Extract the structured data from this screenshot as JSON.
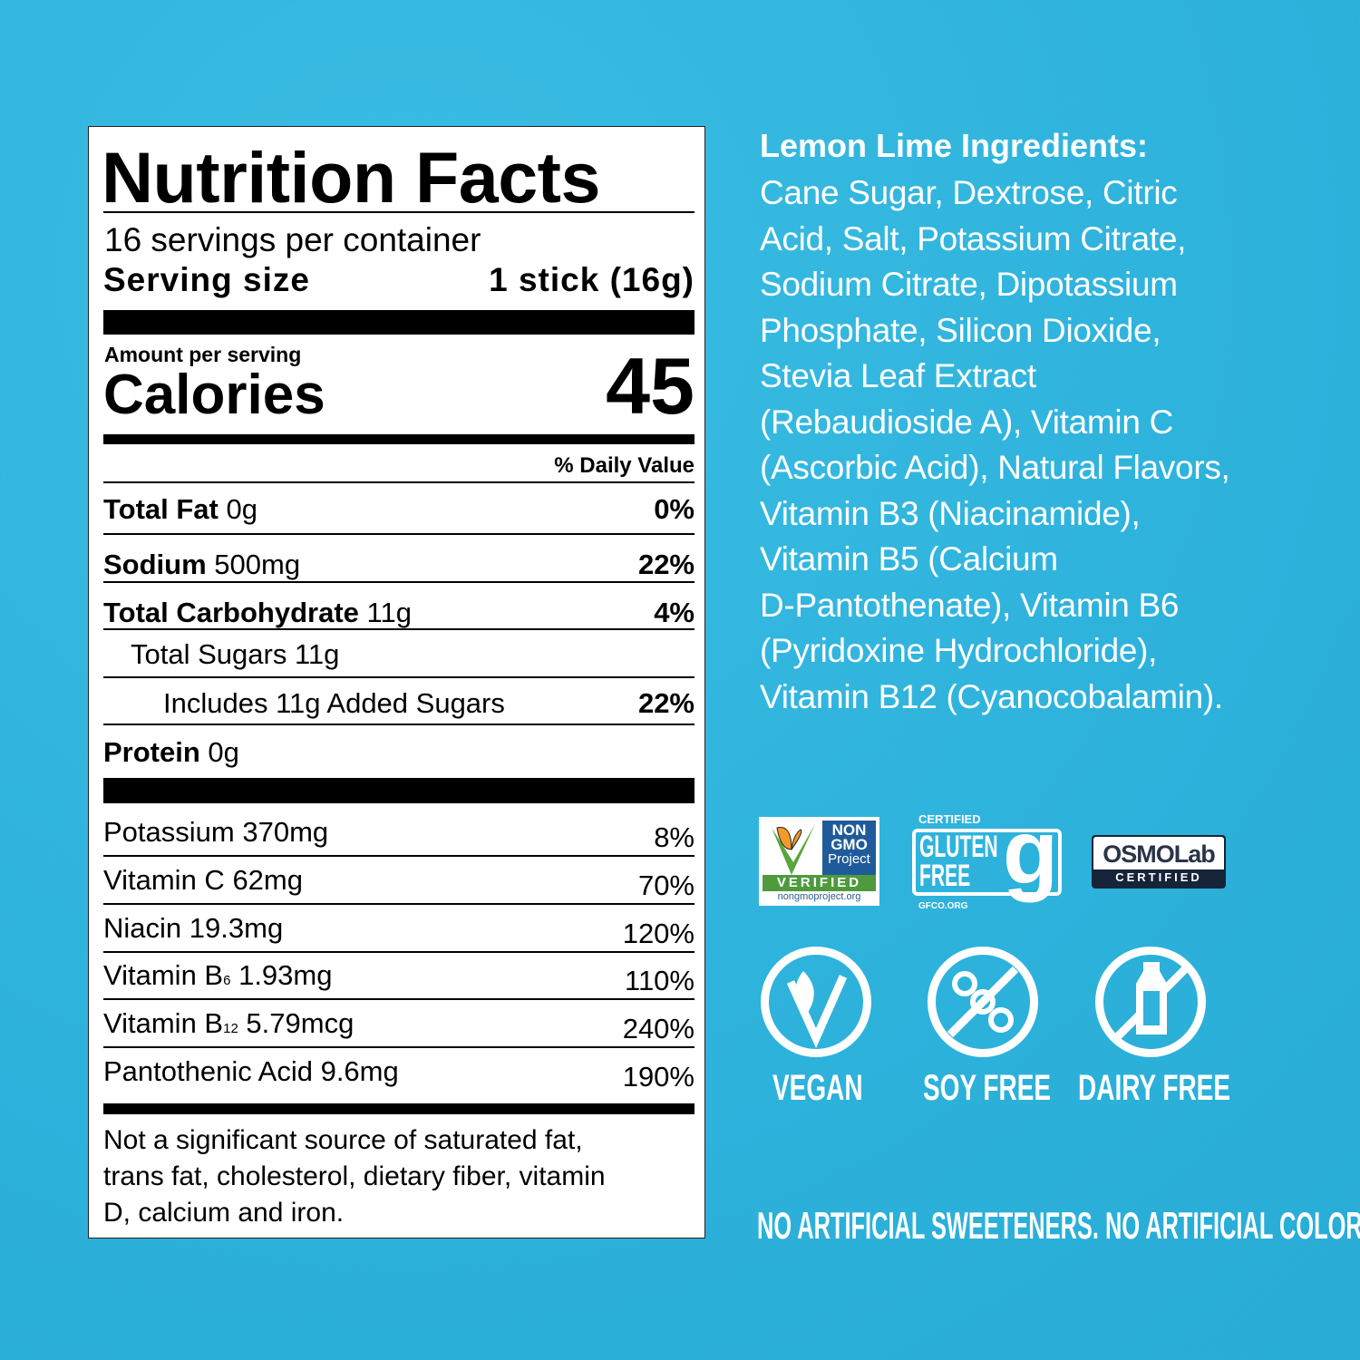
{
  "nutrition": {
    "title": "Nutrition Facts",
    "servings": "16 servings per container",
    "serving_size_label": "Serving size",
    "serving_size_value": "1 stick (16g)",
    "amount_per_serving": "Amount per serving",
    "calories_label": "Calories",
    "calories_value": "45",
    "dv_header": "% Daily Value",
    "nutrients": [
      {
        "name": "Total Fat",
        "amount": "0g",
        "dv": "0%"
      },
      {
        "name": "Sodium",
        "amount": "500mg",
        "dv": "22%"
      },
      {
        "name": "Total Carbohydrate",
        "amount": "11g",
        "dv": "4%"
      },
      {
        "name": "Total Sugars",
        "amount": "11g",
        "dv": ""
      },
      {
        "name": "Includes 11g Added Sugars",
        "amount": "",
        "dv": "22%"
      },
      {
        "name": "Protein",
        "amount": "0g",
        "dv": ""
      }
    ],
    "vitamins": [
      {
        "name": "Potassium",
        "sub": "",
        "amount": "370mg",
        "dv": "8%"
      },
      {
        "name": "Vitamin C",
        "sub": "",
        "amount": "62mg",
        "dv": "70%"
      },
      {
        "name": "Niacin",
        "sub": "",
        "amount": "19.3mg",
        "dv": "120%"
      },
      {
        "name": "Vitamin B",
        "sub": "6",
        "amount": "1.93mg",
        "dv": "110%"
      },
      {
        "name": "Vitamin B",
        "sub": "12",
        "amount": "5.79mcg",
        "dv": "240%"
      },
      {
        "name": "Pantothenic Acid",
        "sub": "",
        "amount": "9.6mg",
        "dv": "190%"
      }
    ],
    "footnote": [
      "Not a significant source of saturated fat,",
      "trans fat, cholesterol, dietary fiber, vitamin",
      "D, calcium and iron."
    ]
  },
  "ingredients": {
    "title": "Lemon Lime Ingredients:",
    "lines": [
      "Cane Sugar, Dextrose, Citric",
      "Acid, Salt, Potassium Citrate,",
      "Sodium Citrate, Dipotassium",
      "Phosphate, Silicon Dioxide,",
      "Stevia Leaf Extract",
      "(Rebaudioside A), Vitamin C",
      "(Ascorbic Acid), Natural Flavors,",
      "Vitamin B3 (Niacinamide),",
      "Vitamin B5 (Calcium",
      "D-Pantothenate), Vitamin B6",
      "(Pyridoxine Hydrochloride),",
      "Vitamin B12 (Cyanocobalamin)."
    ]
  },
  "badges": {
    "nongmo": {
      "line1": "NON",
      "line2": "GMO",
      "line3": "Project",
      "verified": "VERIFIED",
      "url": "nongmoproject.org"
    },
    "gluten": {
      "certified": "CERTIFIED",
      "line1": "GLUTEN",
      "line2": "FREE",
      "url": "GFCO.ORG"
    },
    "osmolab": {
      "name": "OSMOLab",
      "certified": "CERTIFIED"
    },
    "icons": [
      {
        "icon": "vegan-leaf-icon",
        "label": "VEGAN"
      },
      {
        "icon": "no-soy-icon",
        "label": "SOY FREE"
      },
      {
        "icon": "no-dairy-icon",
        "label": "DAIRY FREE"
      }
    ]
  },
  "tagline": "NO ARTIFICIAL SWEETENERS. NO ARTIFICIAL COLORS.",
  "colors": {
    "background": "#2fb3dc",
    "text_light": "#ffffff",
    "nongmo_blue": "#1f5b9a",
    "nongmo_green": "#4f9a3c",
    "osmolab_navy": "#16243a"
  }
}
